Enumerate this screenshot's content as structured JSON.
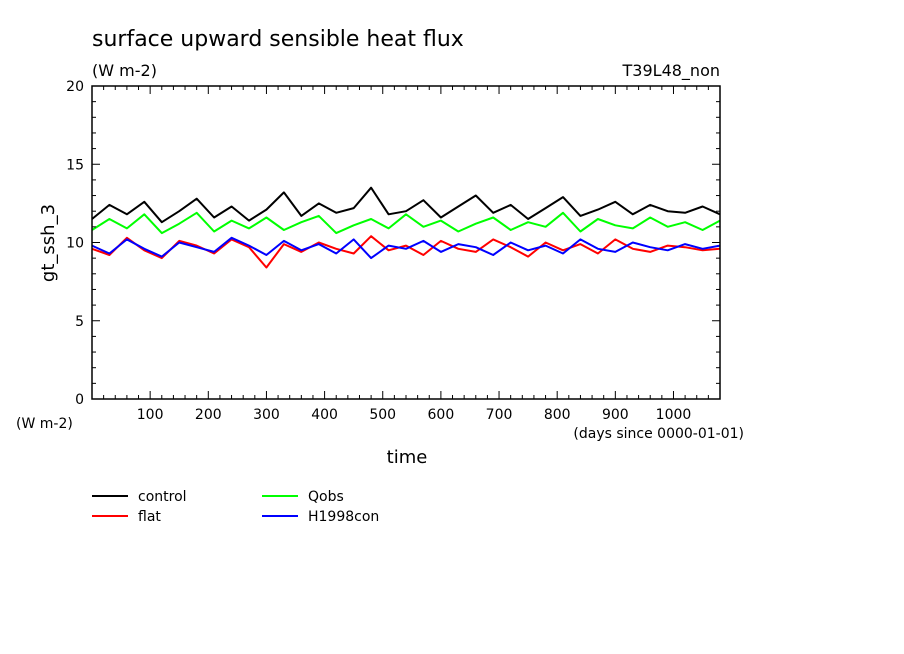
{
  "chart_data": {
    "type": "line",
    "title": "surface upward sensible heat flux",
    "units": "(W m-2)",
    "run_label": "T39L48_non",
    "ylabel": "gt_ssh_3",
    "y_units_label": "(W m-2)",
    "xlabel": "time",
    "x_units_label": "(days since 0000-01-01)",
    "xlim": [
      0,
      1080
    ],
    "ylim": [
      0,
      20
    ],
    "xticks": [
      100,
      200,
      300,
      400,
      500,
      600,
      700,
      800,
      900,
      1000
    ],
    "yticks": [
      0,
      5,
      10,
      15,
      20
    ],
    "grid": false,
    "legend_position": "bottom-left",
    "x": [
      0,
      30,
      60,
      90,
      120,
      150,
      180,
      210,
      240,
      270,
      300,
      330,
      360,
      390,
      420,
      450,
      480,
      510,
      540,
      570,
      600,
      630,
      660,
      690,
      720,
      750,
      780,
      810,
      840,
      870,
      900,
      930,
      960,
      990,
      1020,
      1050,
      1080
    ],
    "series": [
      {
        "name": "control",
        "color": "#000000",
        "values": [
          11.5,
          12.4,
          11.8,
          12.6,
          11.3,
          12.0,
          12.8,
          11.6,
          12.3,
          11.4,
          12.1,
          13.2,
          11.7,
          12.5,
          11.9,
          12.2,
          13.5,
          11.8,
          12.0,
          12.7,
          11.6,
          12.3,
          13.0,
          11.9,
          12.4,
          11.5,
          12.2,
          12.9,
          11.7,
          12.1,
          12.6,
          11.8,
          12.4,
          12.0,
          11.9,
          12.3,
          11.8
        ]
      },
      {
        "name": "flat",
        "color": "#ff0000",
        "values": [
          9.6,
          9.2,
          10.3,
          9.5,
          9.0,
          10.1,
          9.8,
          9.3,
          10.2,
          9.7,
          8.4,
          9.9,
          9.4,
          10.0,
          9.6,
          9.3,
          10.4,
          9.5,
          9.8,
          9.2,
          10.1,
          9.6,
          9.4,
          10.2,
          9.7,
          9.1,
          10.0,
          9.5,
          9.9,
          9.3,
          10.2,
          9.6,
          9.4,
          9.8,
          9.7,
          9.5,
          9.6
        ]
      },
      {
        "name": "Qobs",
        "color": "#00ff00",
        "values": [
          10.8,
          11.5,
          10.9,
          11.8,
          10.6,
          11.2,
          11.9,
          10.7,
          11.4,
          10.9,
          11.6,
          10.8,
          11.3,
          11.7,
          10.6,
          11.1,
          11.5,
          10.9,
          11.8,
          11.0,
          11.4,
          10.7,
          11.2,
          11.6,
          10.8,
          11.3,
          11.0,
          11.9,
          10.7,
          11.5,
          11.1,
          10.9,
          11.6,
          11.0,
          11.3,
          10.8,
          11.4
        ]
      },
      {
        "name": "H1998con",
        "color": "#0000ff",
        "values": [
          9.8,
          9.3,
          10.2,
          9.6,
          9.1,
          10.0,
          9.7,
          9.4,
          10.3,
          9.8,
          9.2,
          10.1,
          9.5,
          9.9,
          9.3,
          10.2,
          9.0,
          9.8,
          9.6,
          10.1,
          9.4,
          9.9,
          9.7,
          9.2,
          10.0,
          9.5,
          9.8,
          9.3,
          10.2,
          9.6,
          9.4,
          10.0,
          9.7,
          9.5,
          9.9,
          9.6,
          9.8
        ]
      }
    ]
  }
}
